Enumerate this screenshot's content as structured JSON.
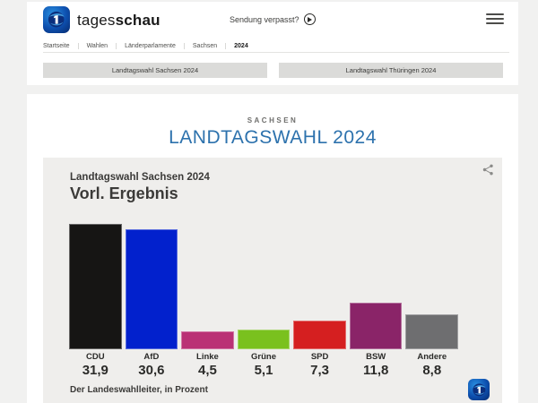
{
  "header": {
    "brand_regular": "tages",
    "brand_bold": "schau",
    "watch_link": "Sendung verpasst?"
  },
  "breadcrumb": {
    "items": [
      "Startseite",
      "Wahlen",
      "Länderparlamente",
      "Sachsen",
      "2024"
    ]
  },
  "nav_buttons": {
    "left": "Landtagswahl Sachsen 2024",
    "right": "Landtagswahl Thüringen 2024"
  },
  "page": {
    "region": "SACHSEN",
    "title": "LANDTAGSWAHL 2024"
  },
  "chart_data": {
    "type": "bar",
    "title": "Landtagswahl Sachsen 2024",
    "subtitle": "Vorl. Ergebnis",
    "categories": [
      "CDU",
      "AfD",
      "Linke",
      "Grüne",
      "SPD",
      "BSW",
      "Andere"
    ],
    "values": [
      31.9,
      30.6,
      4.5,
      5.1,
      7.3,
      11.8,
      8.8
    ],
    "value_labels": [
      "31,9",
      "30,6",
      "4,5",
      "5,1",
      "7,3",
      "11,8",
      "8,8"
    ],
    "bar_colors": [
      "#161514",
      "#0221cd",
      "#ba3175",
      "#7ac11e",
      "#d51f20",
      "#8a2468",
      "#6e6e70"
    ],
    "source": "Der Landeswahlleiter, in Prozent",
    "unit": "percent",
    "ylim": [
      0,
      35
    ],
    "grid": false,
    "legend": false
  },
  "colors": {
    "accent_blue": "#2d72ad",
    "chart_bg": "#efeeec",
    "page_bg": "#f1f1f0"
  }
}
